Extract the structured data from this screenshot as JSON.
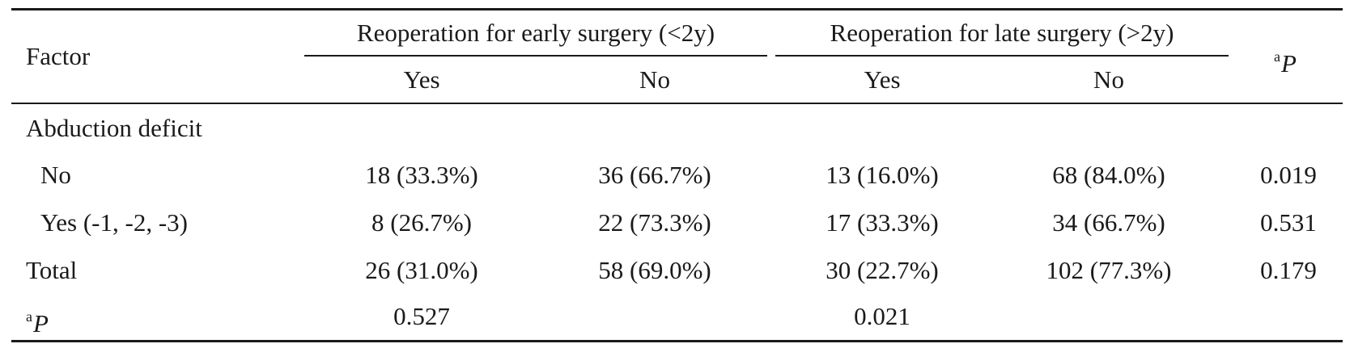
{
  "table": {
    "header": {
      "factor": "Factor",
      "group_early": "Reoperation for early surgery (<2y)",
      "group_late": "Reoperation for late surgery (>2y)",
      "p_sup": "a",
      "p_letter": "P",
      "yes": "Yes",
      "no": "No"
    },
    "section_label": "Abduction deficit",
    "rows": [
      {
        "label": "No",
        "early_yes": "18 (33.3%)",
        "early_no": "36 (66.7%)",
        "late_yes": "13 (16.0%)",
        "late_no": "68 (84.0%)",
        "p": "0.019"
      },
      {
        "label": "Yes (-1, -2, -3)",
        "early_yes": "8 (26.7%)",
        "early_no": "22 (73.3%)",
        "late_yes": "17 (33.3%)",
        "late_no": "34 (66.7%)",
        "p": "0.531"
      },
      {
        "label": "Total",
        "early_yes": "26 (31.0%)",
        "early_no": "58 (69.0%)",
        "late_yes": "30 (22.7%)",
        "late_no": "102 (77.3%)",
        "p": "0.179"
      }
    ],
    "footer": {
      "p_sup": "a",
      "p_letter": "P",
      "early_p": "0.527",
      "late_p": "0.021"
    }
  }
}
